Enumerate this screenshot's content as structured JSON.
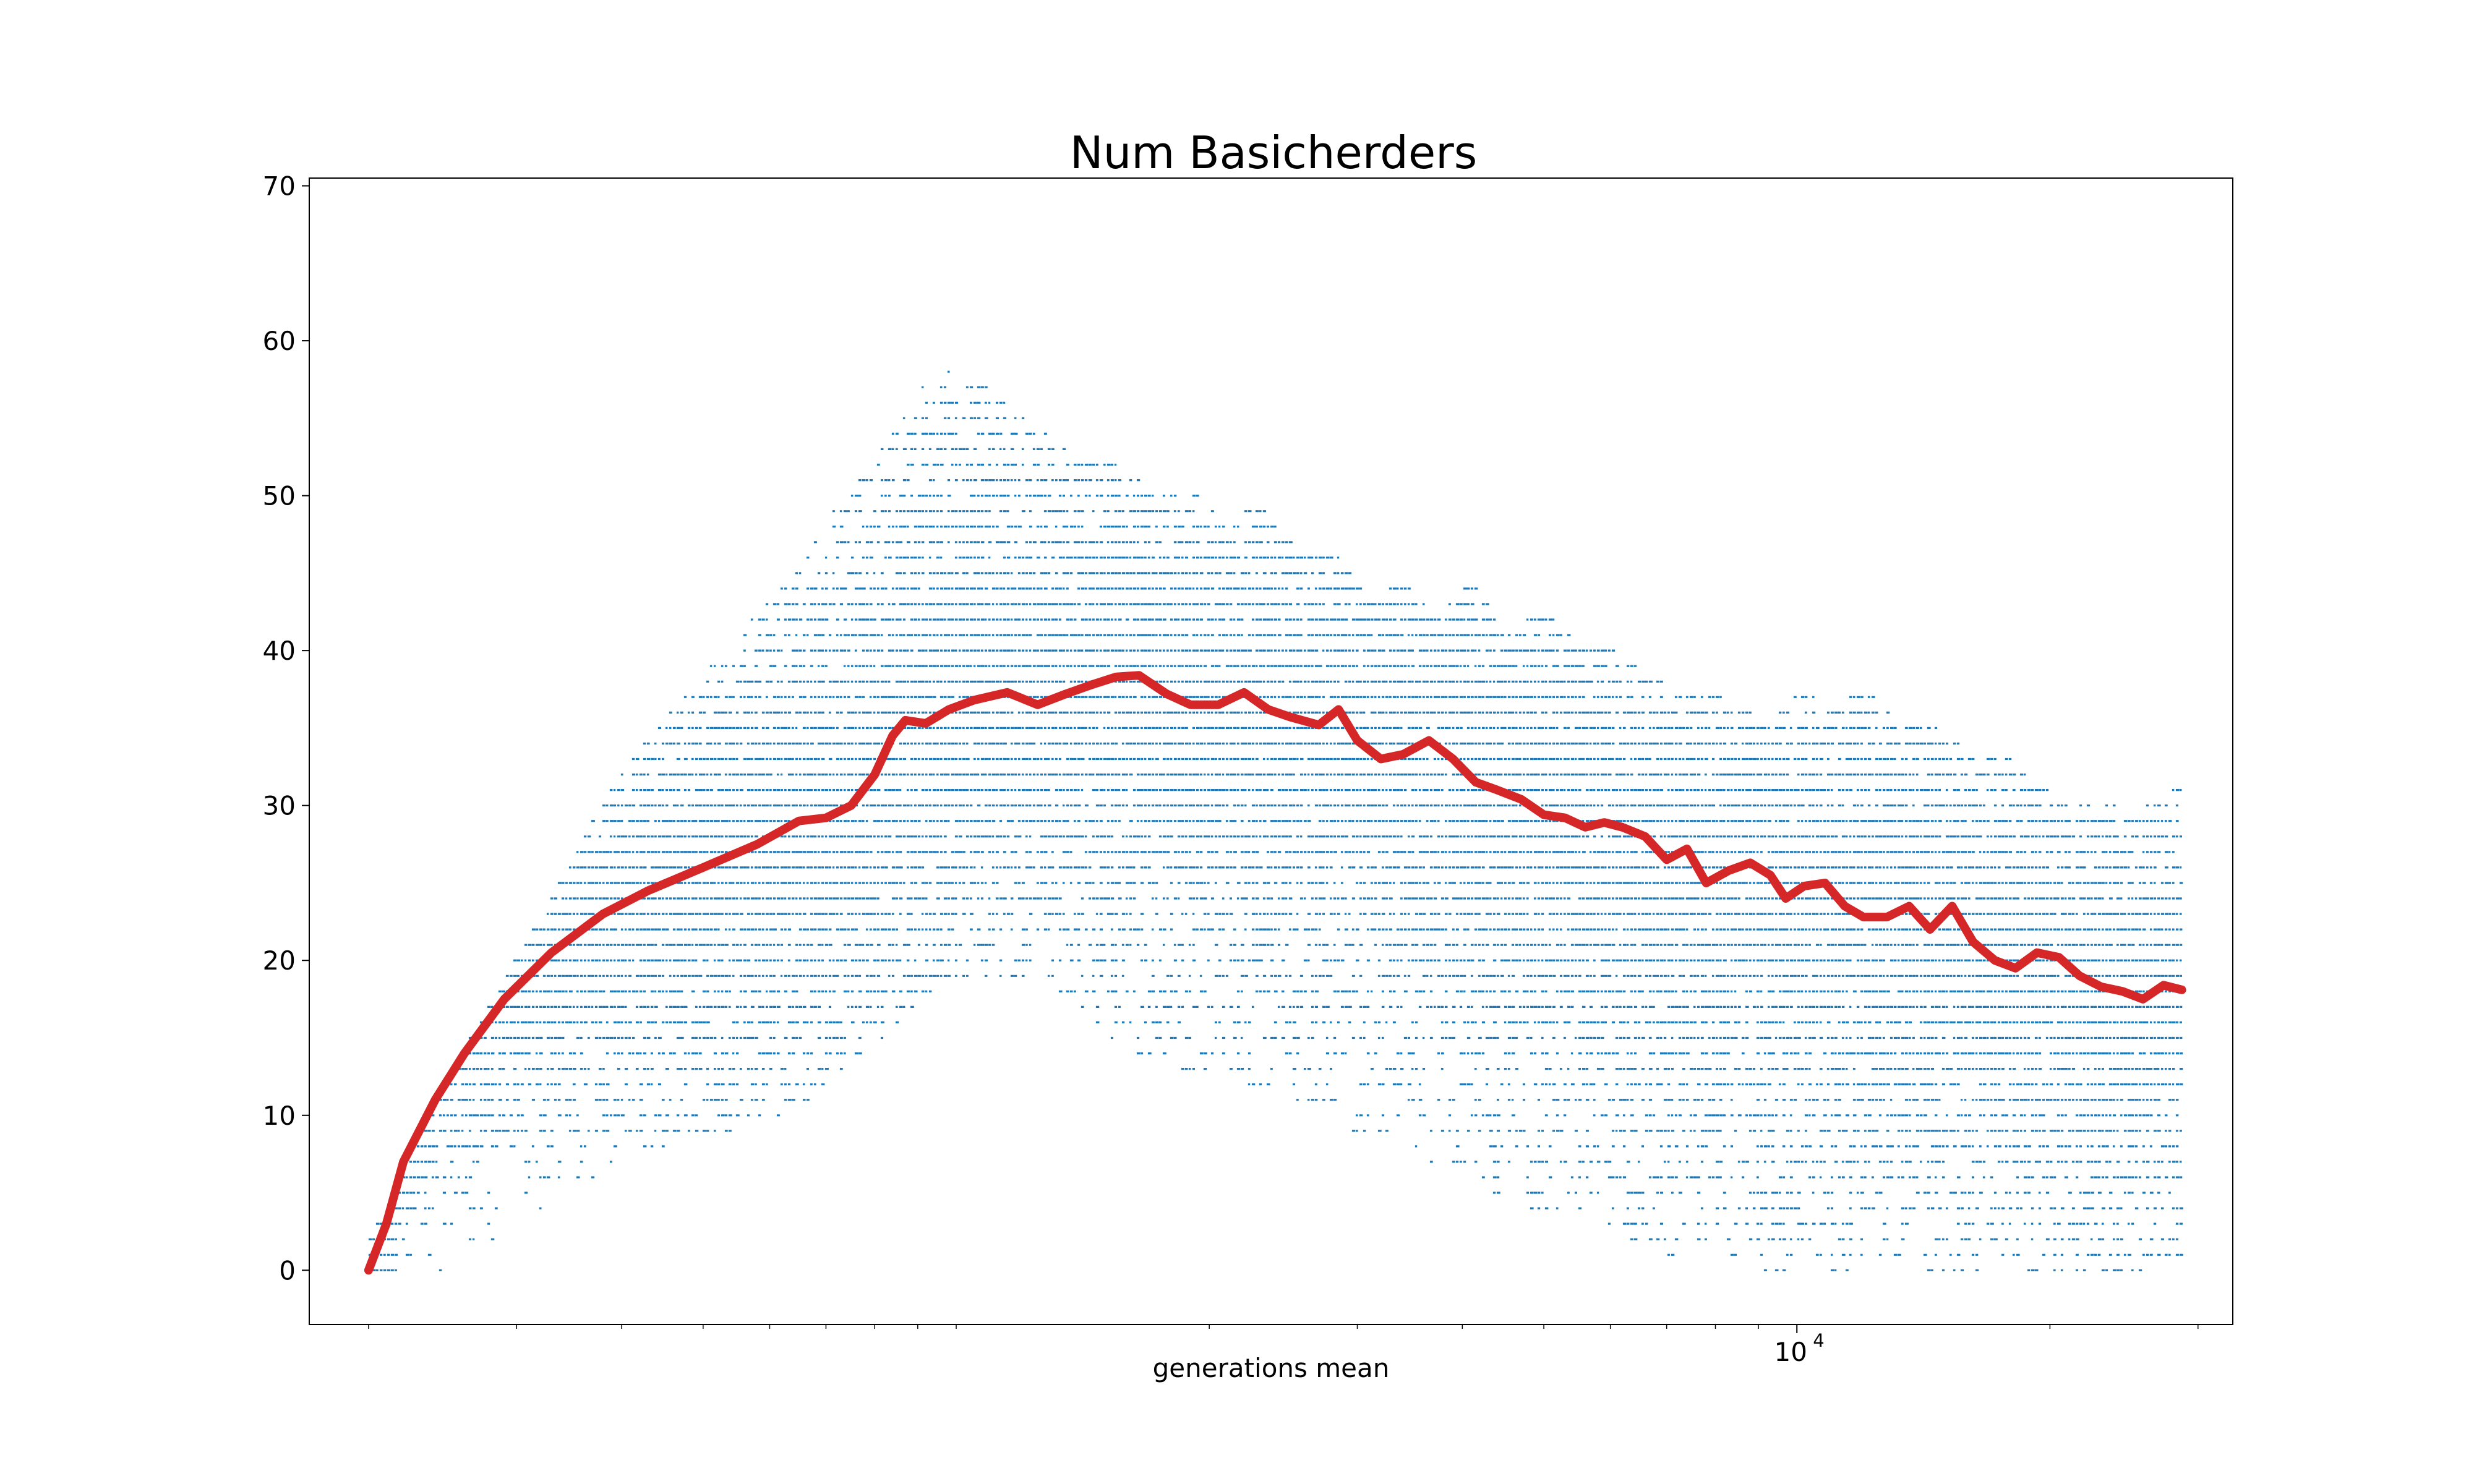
{
  "chart_data": {
    "type": "scatter",
    "title": "Num Basicherders",
    "xlabel": "generations mean",
    "ylabel": "",
    "x_scale": "log",
    "xlim": [
      170,
      33000
    ],
    "ylim": [
      -3.5,
      70.5
    ],
    "y_ticks": [
      0,
      10,
      20,
      30,
      40,
      50,
      60,
      70
    ],
    "x_major_tick": {
      "base": "10",
      "exponent": "4",
      "value": 10000
    },
    "grid": false,
    "legend": "none",
    "colors": {
      "scatter": "#1f77b4",
      "mean_line": "#d62728"
    },
    "series": [
      {
        "kind": "mean_line",
        "x": [
          200,
          210,
          220,
          240,
          260,
          290,
          330,
          380,
          430,
          500,
          580,
          650,
          700,
          750,
          800,
          840,
          870,
          920,
          980,
          1050,
          1150,
          1250,
          1350,
          1450,
          1550,
          1650,
          1780,
          1900,
          2050,
          2200,
          2350,
          2500,
          2700,
          2850,
          3000,
          3200,
          3400,
          3650,
          3900,
          4150,
          4400,
          4700,
          5000,
          5300,
          5600,
          5900,
          6200,
          6600,
          7000,
          7400,
          7800,
          8300,
          8800,
          9300,
          9700,
          10200,
          10800,
          11400,
          12000,
          12800,
          13600,
          14400,
          15300,
          16200,
          17200,
          18200,
          19300,
          20500,
          21700,
          23000,
          24400,
          25800,
          27300,
          28700
        ],
        "y": [
          0,
          3,
          7,
          11,
          14,
          17.5,
          20.5,
          23,
          24.5,
          26,
          27.5,
          29,
          29.2,
          30,
          32,
          34.5,
          35.5,
          35.3,
          36.2,
          36.8,
          37.3,
          36.5,
          37.2,
          37.8,
          38.3,
          38.4,
          37.2,
          36.5,
          36.5,
          37.3,
          36.2,
          35.7,
          35.2,
          36.2,
          34.2,
          33,
          33.3,
          34.2,
          33,
          31.5,
          31,
          30.4,
          29.4,
          29.2,
          28.6,
          28.9,
          28.6,
          28,
          26.5,
          27.2,
          25,
          25.8,
          26.3,
          25.5,
          24,
          24.8,
          25,
          23.5,
          22.8,
          22.8,
          23.5,
          22,
          23.5,
          21.2,
          20,
          19.5,
          20.5,
          20.2,
          19,
          18.3,
          18,
          17.5,
          18.4,
          18.1
        ]
      }
    ],
    "scatter_band": {
      "x": [
        200,
        230,
        260,
        300,
        340,
        380,
        430,
        500,
        580,
        650,
        720,
        800,
        870,
        950,
        1050,
        1150,
        1250,
        1400,
        1550,
        1700,
        1900,
        2100,
        2300,
        2550,
        2800,
        3100,
        3400,
        3700,
        4100,
        4500,
        5000,
        5500,
        6000,
        6600,
        7200,
        7800,
        8500,
        9300,
        10000,
        11000,
        12000,
        13200,
        14500,
        16000,
        17500,
        19300,
        21000,
        23000,
        25000,
        27000,
        28700
      ],
      "low": [
        0,
        0,
        1,
        3,
        5,
        7,
        8,
        9,
        10,
        11,
        13,
        15,
        17,
        19,
        19,
        19,
        20,
        17,
        15,
        14,
        13,
        13,
        12,
        11,
        10,
        9,
        8,
        7,
        6,
        5,
        4,
        4,
        3,
        2,
        1,
        2,
        1,
        0,
        1,
        0,
        0,
        1,
        0,
        0,
        1,
        0,
        0,
        0,
        0,
        0,
        1
      ],
      "high": [
        2,
        8,
        14,
        20,
        25,
        30,
        34,
        38,
        42,
        45,
        49,
        52,
        55,
        58,
        57,
        56,
        54,
        52,
        52,
        50,
        50,
        48,
        49,
        46,
        46,
        43,
        44,
        42,
        44,
        41,
        42,
        40,
        40,
        38,
        37,
        37,
        36,
        35,
        37,
        36,
        37,
        35,
        35,
        33,
        33,
        31,
        30,
        30,
        29,
        30,
        31
      ]
    }
  }
}
